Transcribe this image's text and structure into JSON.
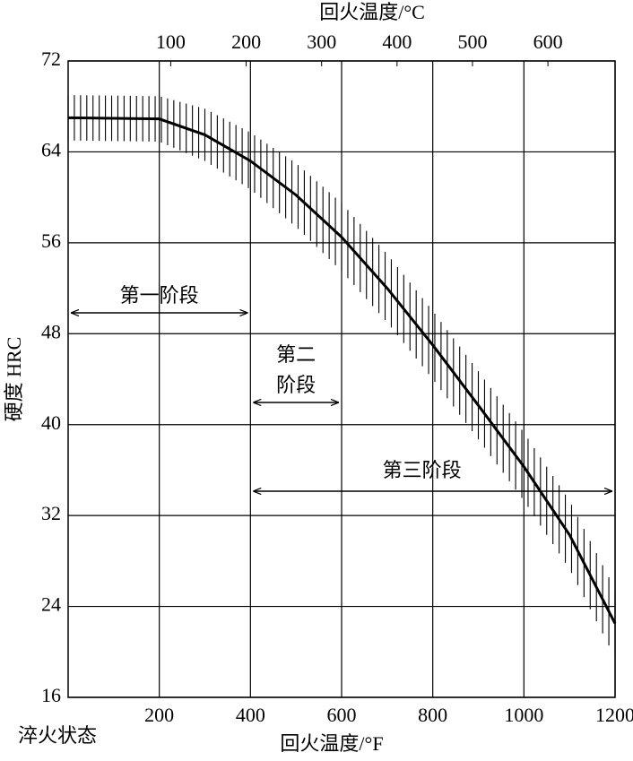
{
  "chart_data": {
    "type": "line",
    "ylabel": "硬度 HRC",
    "xlabel": "回火温度/°F",
    "x2label": "回火温度/°C",
    "x": [
      0,
      200,
      300,
      400,
      500,
      600,
      700,
      800,
      900,
      1000,
      1100,
      1200
    ],
    "series": [
      {
        "color": "#000000",
        "values": [
          67,
          66.9,
          65.5,
          63.2,
          60.2,
          56.5,
          52,
          47,
          41.7,
          36.3,
          30.3,
          22.5
        ],
        "errors": [
          2,
          2,
          2.3,
          2.5,
          2.8,
          3,
          3,
          3,
          3,
          3,
          3,
          3
        ]
      }
    ],
    "xlim": [
      0,
      1200
    ],
    "xticks": [
      {
        "value": 0,
        "label": "淬火状态"
      },
      200,
      400,
      600,
      800,
      1000,
      1200
    ],
    "x2lim": [
      -36,
      689
    ],
    "x2ticks": [
      100,
      200,
      300,
      400,
      500,
      600
    ],
    "ylim": [
      16,
      72
    ],
    "yticks": [
      16,
      24,
      32,
      40,
      48,
      56,
      64,
      72
    ],
    "grid": true,
    "annotations": [
      {
        "lines": [
          "第一阶段"
        ],
        "range": [
          0,
          400
        ]
      },
      {
        "lines": [
          "第二",
          "阶段"
        ],
        "range": [
          400,
          600
        ]
      },
      {
        "lines": [
          "第三阶段"
        ],
        "range": [
          400,
          1200
        ]
      }
    ]
  }
}
